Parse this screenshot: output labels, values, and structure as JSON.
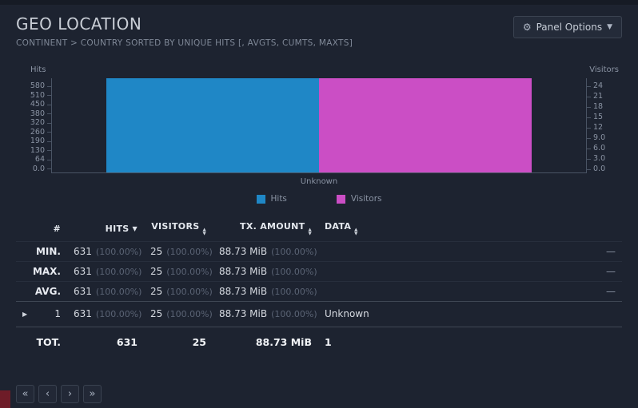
{
  "panel": {
    "title": "GEO LOCATION",
    "subtitle": "CONTINENT > COUNTRY SORTED BY UNIQUE HITS [, AVGTS, CUMTS, MAXTS]",
    "options_label": "Panel Options"
  },
  "icons": {
    "gear": "⚙",
    "caret_down": "▼",
    "sort_desc": "▼",
    "sort_asc": "▲",
    "expand": "▶",
    "page_first": "«",
    "page_prev": "‹",
    "page_next": "›",
    "page_last": "»"
  },
  "chart_data": {
    "type": "bar",
    "title": "GEO LOCATION",
    "categories": [
      "Unknown"
    ],
    "series": [
      {
        "name": "Hits",
        "values": [
          631
        ],
        "color": "#1f87c6"
      },
      {
        "name": "Visitors",
        "values": [
          25
        ],
        "color": "#cb4ec5"
      }
    ],
    "left_axis": {
      "label": "Hits",
      "ticks": [
        "580",
        "510",
        "450",
        "380",
        "320",
        "260",
        "190",
        "130",
        "64",
        "0.0"
      ],
      "range": [
        0,
        640
      ]
    },
    "right_axis": {
      "label": "Visitors",
      "ticks": [
        "24",
        "21",
        "18",
        "15",
        "12",
        "9.0",
        "6.0",
        "3.0",
        "0.0"
      ],
      "range": [
        0,
        25
      ]
    },
    "legend": [
      "Hits",
      "Visitors"
    ],
    "legend_position": "bottom",
    "grid": false
  },
  "table": {
    "headers": [
      {
        "label": "#",
        "sort": "none"
      },
      {
        "label": "HITS",
        "sort": "desc"
      },
      {
        "label": "VISITORS",
        "sort": "both"
      },
      {
        "label": "TX. AMOUNT",
        "sort": "both"
      },
      {
        "label": "DATA",
        "sort": "both"
      }
    ],
    "summary": [
      {
        "label": "MIN.",
        "hits": "631",
        "hits_pct": "(100.00%)",
        "visitors": "25",
        "visitors_pct": "(100.00%)",
        "tx": "88.73 MiB",
        "tx_pct": "(100.00%)",
        "dash": "—"
      },
      {
        "label": "MAX.",
        "hits": "631",
        "hits_pct": "(100.00%)",
        "visitors": "25",
        "visitors_pct": "(100.00%)",
        "tx": "88.73 MiB",
        "tx_pct": "(100.00%)",
        "dash": "—"
      },
      {
        "label": "AVG.",
        "hits": "631",
        "hits_pct": "(100.00%)",
        "visitors": "25",
        "visitors_pct": "(100.00%)",
        "tx": "88.73 MiB",
        "tx_pct": "(100.00%)",
        "dash": "—"
      }
    ],
    "rows": [
      {
        "num": "1",
        "hits": "631",
        "hits_pct": "(100.00%)",
        "visitors": "25",
        "visitors_pct": "(100.00%)",
        "tx": "88.73 MiB",
        "tx_pct": "(100.00%)",
        "data": "Unknown"
      }
    ],
    "total": {
      "label": "TOT.",
      "hits": "631",
      "visitors": "25",
      "tx": "88.73 MiB",
      "data": "1"
    }
  },
  "pagination": {
    "first": "«",
    "prev": "‹",
    "next": "›",
    "last": "»"
  }
}
